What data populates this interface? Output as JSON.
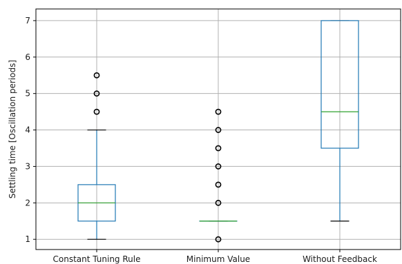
{
  "chart_data": {
    "type": "box",
    "title": "",
    "xlabel": "",
    "ylabel": "Settling time [Oscillation periods]",
    "ylim": [
      0.72,
      7.32
    ],
    "grid": true,
    "categories": [
      "Constant Tuning Rule",
      "Minimum Value",
      "Without Feedback"
    ],
    "yticks": [
      1,
      2,
      3,
      4,
      5,
      6,
      7
    ],
    "boxes": [
      {
        "category": "Constant Tuning Rule",
        "whisker_low": 1.0,
        "q1": 1.5,
        "median": 2.0,
        "q3": 2.5,
        "whisker_high": 4.0,
        "outliers": [
          4.5,
          5.0,
          5.5
        ]
      },
      {
        "category": "Minimum Value",
        "whisker_low": 1.5,
        "q1": 1.5,
        "median": 1.5,
        "q3": 1.5,
        "whisker_high": 1.5,
        "outliers": [
          1.0,
          2.0,
          2.5,
          3.0,
          3.5,
          4.0,
          4.5
        ]
      },
      {
        "category": "Without Feedback",
        "whisker_low": 1.5,
        "q1": 3.5,
        "median": 4.5,
        "q3": 7.0,
        "whisker_high": 7.0,
        "outliers": []
      }
    ],
    "colors": {
      "box": "#1f77b4",
      "median": "#2ca02c",
      "whisker": "#1f77b4",
      "cap": "#000000",
      "outlier": "#000000",
      "grid": "#b0b0b0",
      "spine": "#000000"
    }
  }
}
